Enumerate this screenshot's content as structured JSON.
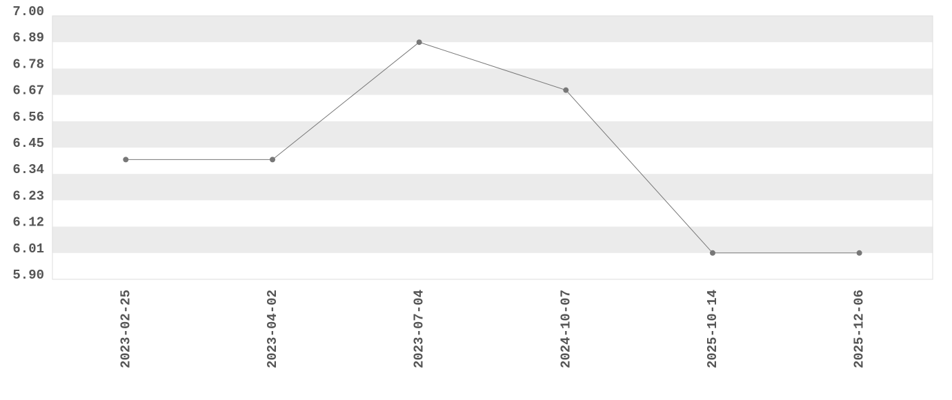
{
  "chart_data": {
    "type": "line",
    "categories": [
      "2023-02-25",
      "2023-04-02",
      "2023-07-04",
      "2024-10-07",
      "2025-10-14",
      "2025-12-06"
    ],
    "values": [
      6.4,
      6.4,
      6.89,
      6.69,
      6.01,
      6.01
    ],
    "color": "#777777",
    "ylim": [
      5.9,
      7.0
    ],
    "yticks": [
      {
        "value": 5.9,
        "label": "5.90"
      },
      6.01,
      6.12,
      6.23,
      6.34,
      6.45,
      6.56,
      6.67,
      6.78,
      6.89,
      {
        "value": 7.0,
        "label": "7.00"
      }
    ],
    "grid": "bands"
  }
}
